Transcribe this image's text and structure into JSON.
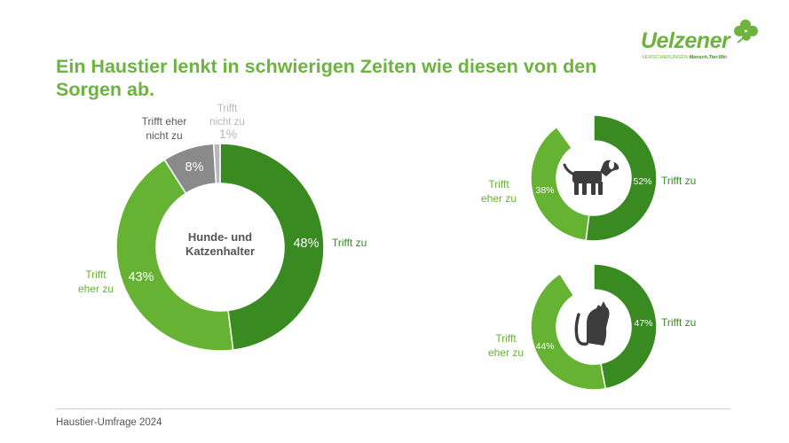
{
  "title": "Ein Haustier lenkt in schwierigen Zeiten wie diesen von den Sorgen ab.",
  "logo": {
    "word": "Uelzener",
    "tag_plain": "VERSICHERUNGEN",
    "tag_bold": "Mensch.Tier.Wir."
  },
  "footer": "Haustier-Umfrage 2024",
  "colors": {
    "dark_green": "#3a8a22",
    "light_green": "#66b232",
    "gray": "#8a8a8a",
    "light_gray": "#b7b7b7",
    "title_green": "#6cb33f"
  },
  "chart_data": [
    {
      "type": "pie",
      "title": "Hunde- und Katzenhalter",
      "slices": [
        {
          "label": "Trifft zu",
          "value": 48,
          "value_label": "48%",
          "color": "#3a8a22"
        },
        {
          "label": "Trifft eher zu",
          "value": 43,
          "value_label": "43%",
          "color": "#66b232"
        },
        {
          "label": "Trifft eher nicht zu",
          "value": 8,
          "value_label": "8%",
          "color": "#8a8a8a"
        },
        {
          "label": "Trifft nicht zu",
          "value": 1,
          "value_label": "1%",
          "color": "#b7b7b7"
        }
      ]
    },
    {
      "type": "pie",
      "icon": "dog-icon",
      "slices": [
        {
          "label": "Trifft zu",
          "value": 52,
          "value_label": "52%",
          "color": "#3a8a22"
        },
        {
          "label": "Trifft eher zu",
          "value": 38,
          "value_label": "38%",
          "color": "#66b232"
        }
      ]
    },
    {
      "type": "pie",
      "icon": "cat-icon",
      "slices": [
        {
          "label": "Trifft zu",
          "value": 47,
          "value_label": "47%",
          "color": "#3a8a22"
        },
        {
          "label": "Trifft eher zu",
          "value": 44,
          "value_label": "44%",
          "color": "#66b232"
        }
      ]
    }
  ]
}
